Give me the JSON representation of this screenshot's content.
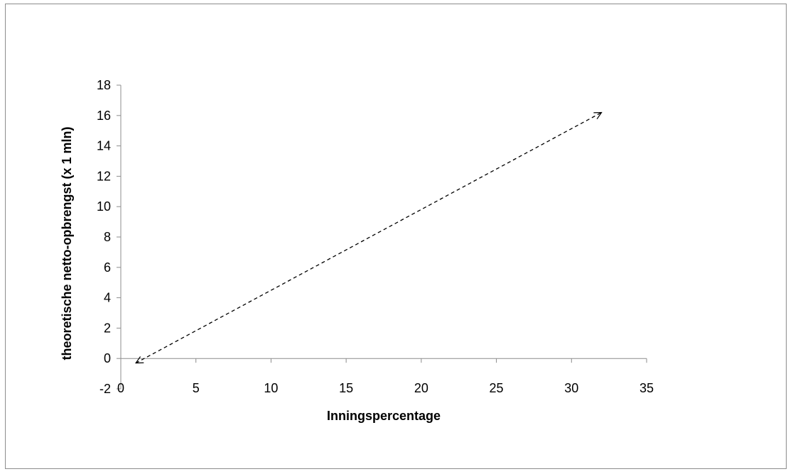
{
  "chart_data": {
    "type": "line",
    "title": "",
    "xlabel": "Inningspercentage",
    "ylabel": "theoretische netto-opbrengst (x 1 mln)",
    "xlim": [
      0,
      35
    ],
    "ylim": [
      -2,
      18
    ],
    "x_ticks": [
      "0",
      "5",
      "10",
      "15",
      "20",
      "25",
      "30",
      "35"
    ],
    "y_ticks": [
      "-2",
      "0",
      "2",
      "4",
      "6",
      "8",
      "10",
      "12",
      "14",
      "16",
      "18"
    ],
    "grid": false,
    "legend": "none",
    "series": [
      {
        "style": "dashed",
        "arrows": "both",
        "color": "#000000",
        "x": [
          1,
          32
        ],
        "y": [
          -0.3,
          16.2
        ]
      }
    ]
  }
}
